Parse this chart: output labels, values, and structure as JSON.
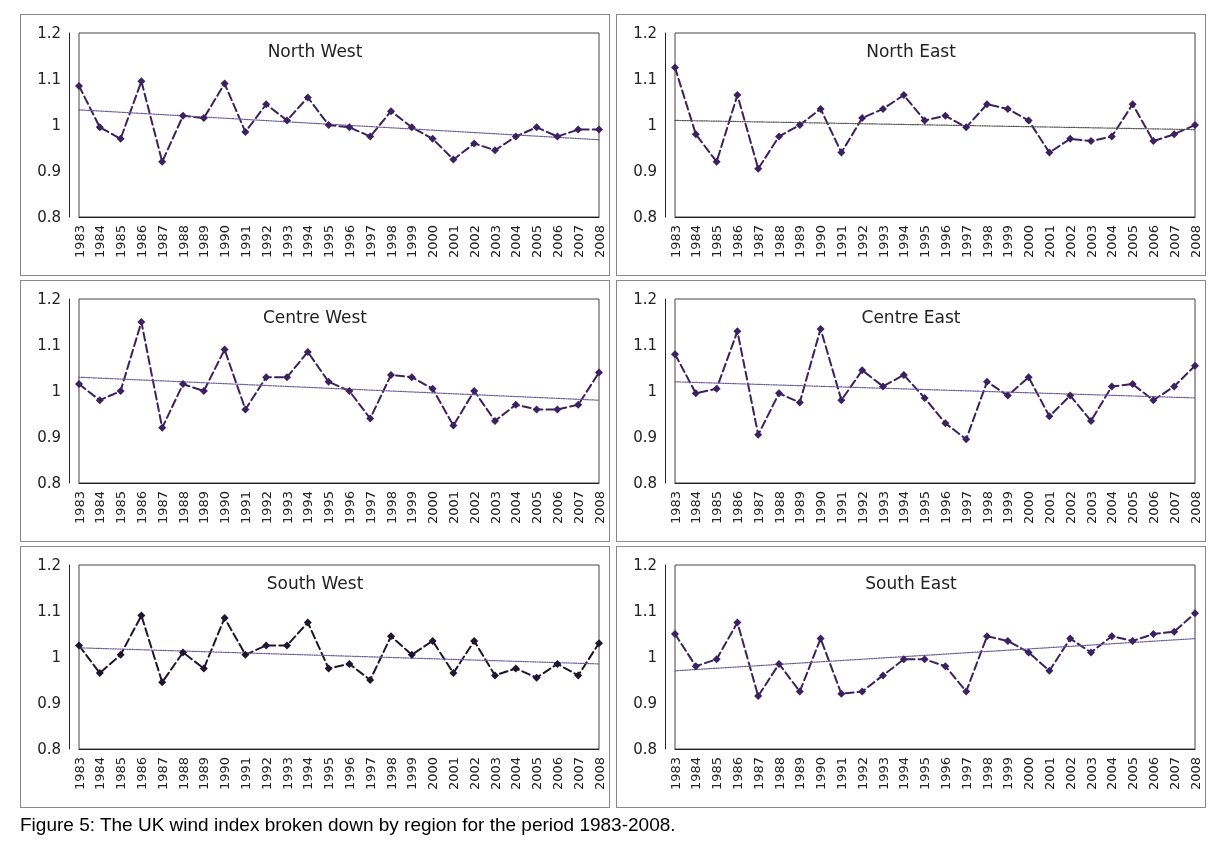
{
  "chart_data": [
    {
      "type": "line",
      "title": "North West",
      "categories": [
        "1983",
        "1984",
        "1985",
        "1986",
        "1987",
        "1988",
        "1989",
        "1990",
        "1991",
        "1992",
        "1993",
        "1994",
        "1995",
        "1996",
        "1997",
        "1998",
        "1999",
        "2000",
        "2001",
        "2002",
        "2003",
        "2004",
        "2005",
        "2006",
        "2007",
        "2008"
      ],
      "ylim": [
        0.8,
        1.2
      ],
      "yticks": [
        0.8,
        0.9,
        1,
        1.1,
        1.2
      ],
      "grid": false,
      "series": [
        {
          "color": "#3b2160",
          "marker": "diamond",
          "line_style": "dashed",
          "values": [
            1.085,
            0.995,
            0.97,
            1.095,
            0.92,
            1.02,
            1.015,
            1.09,
            0.985,
            1.045,
            1.01,
            1.06,
            1.0,
            0.995,
            0.975,
            1.03,
            0.995,
            0.97,
            0.925,
            0.96,
            0.945,
            0.975,
            0.995,
            0.975,
            0.99,
            0.99
          ]
        },
        {
          "type": "line",
          "color": "#6b5b9c",
          "marker": "none",
          "line_style": "dotted",
          "values": [
            1.033,
            null,
            null,
            null,
            null,
            null,
            null,
            null,
            null,
            null,
            null,
            null,
            null,
            null,
            null,
            null,
            null,
            null,
            null,
            null,
            null,
            null,
            null,
            null,
            null,
            0.968
          ]
        }
      ]
    },
    {
      "type": "line",
      "title": "North East",
      "categories": [
        "1983",
        "1984",
        "1985",
        "1986",
        "1987",
        "1988",
        "1989",
        "1990",
        "1991",
        "1992",
        "1993",
        "1994",
        "1995",
        "1996",
        "1997",
        "1998",
        "1999",
        "2000",
        "2001",
        "2002",
        "2003",
        "2004",
        "2005",
        "2006",
        "2007",
        "2008"
      ],
      "ylim": [
        0.8,
        1.2
      ],
      "yticks": [
        0.8,
        0.9,
        1,
        1.1,
        1.2
      ],
      "grid": false,
      "series": [
        {
          "color": "#3b2160",
          "marker": "diamond",
          "line_style": "dashed",
          "values": [
            1.125,
            0.98,
            0.92,
            1.065,
            0.905,
            0.975,
            1.0,
            1.035,
            0.94,
            1.015,
            1.035,
            1.065,
            1.01,
            1.02,
            0.995,
            1.045,
            1.035,
            1.01,
            0.94,
            0.97,
            0.965,
            0.975,
            1.045,
            0.965,
            0.98,
            1.0
          ]
        },
        {
          "type": "line",
          "color": "#555555",
          "marker": "none",
          "line_style": "dotted",
          "values": [
            1.01,
            null,
            null,
            null,
            null,
            null,
            null,
            null,
            null,
            null,
            null,
            null,
            null,
            null,
            null,
            null,
            null,
            null,
            null,
            null,
            null,
            null,
            null,
            null,
            null,
            0.99
          ]
        }
      ]
    },
    {
      "type": "line",
      "title": "Centre West",
      "categories": [
        "1983",
        "1984",
        "1985",
        "1986",
        "1987",
        "1988",
        "1989",
        "1990",
        "1991",
        "1992",
        "1993",
        "1994",
        "1995",
        "1996",
        "1997",
        "1998",
        "1999",
        "2000",
        "2001",
        "2002",
        "2003",
        "2004",
        "2005",
        "2006",
        "2007",
        "2008"
      ],
      "ylim": [
        0.8,
        1.2
      ],
      "yticks": [
        0.8,
        0.9,
        1,
        1.1,
        1.2
      ],
      "grid": false,
      "series": [
        {
          "color": "#3b2160",
          "marker": "diamond",
          "line_style": "dashed",
          "values": [
            1.015,
            0.98,
            1.0,
            1.15,
            0.92,
            1.015,
            1.0,
            1.09,
            0.96,
            1.03,
            1.03,
            1.085,
            1.02,
            1.0,
            0.94,
            1.035,
            1.03,
            1.005,
            0.925,
            1.0,
            0.935,
            0.97,
            0.96,
            0.96,
            0.97,
            1.04
          ]
        },
        {
          "type": "line",
          "color": "#6b5b9c",
          "marker": "none",
          "line_style": "dotted",
          "values": [
            1.03,
            null,
            null,
            null,
            null,
            null,
            null,
            null,
            null,
            null,
            null,
            null,
            null,
            null,
            null,
            null,
            null,
            null,
            null,
            null,
            null,
            null,
            null,
            null,
            null,
            0.98
          ]
        }
      ]
    },
    {
      "type": "line",
      "title": "Centre East",
      "categories": [
        "1983",
        "1984",
        "1985",
        "1986",
        "1987",
        "1988",
        "1989",
        "1990",
        "1991",
        "1992",
        "1993",
        "1994",
        "1995",
        "1996",
        "1997",
        "1998",
        "1999",
        "2000",
        "2001",
        "2002",
        "2003",
        "2004",
        "2005",
        "2006",
        "2007",
        "2008"
      ],
      "ylim": [
        0.8,
        1.2
      ],
      "yticks": [
        0.8,
        0.9,
        1,
        1.1,
        1.2
      ],
      "grid": false,
      "series": [
        {
          "color": "#3b2160",
          "marker": "diamond",
          "line_style": "dashed",
          "values": [
            1.08,
            0.995,
            1.005,
            1.13,
            0.905,
            0.995,
            0.975,
            1.135,
            0.98,
            1.045,
            1.01,
            1.035,
            0.985,
            0.93,
            0.895,
            1.02,
            0.99,
            1.03,
            0.945,
            0.99,
            0.935,
            1.01,
            1.015,
            0.98,
            1.01,
            1.055
          ]
        },
        {
          "type": "line",
          "color": "#6b5b9c",
          "marker": "none",
          "line_style": "dotted",
          "values": [
            1.02,
            null,
            null,
            null,
            null,
            null,
            null,
            null,
            null,
            null,
            null,
            null,
            null,
            null,
            null,
            null,
            null,
            null,
            null,
            null,
            null,
            null,
            null,
            null,
            null,
            0.985
          ]
        }
      ]
    },
    {
      "type": "line",
      "title": "South West",
      "categories": [
        "1983",
        "1984",
        "1985",
        "1986",
        "1987",
        "1988",
        "1989",
        "1990",
        "1991",
        "1992",
        "1993",
        "1994",
        "1995",
        "1996",
        "1997",
        "1998",
        "1999",
        "2000",
        "2001",
        "2002",
        "2003",
        "2004",
        "2005",
        "2006",
        "2007",
        "2008"
      ],
      "ylim": [
        0.8,
        1.2
      ],
      "yticks": [
        0.8,
        0.9,
        1,
        1.1,
        1.2
      ],
      "grid": false,
      "series": [
        {
          "color": "#1f1530",
          "marker": "diamond",
          "line_style": "dashed",
          "values": [
            1.025,
            0.965,
            1.005,
            1.09,
            0.945,
            1.01,
            0.975,
            1.085,
            1.005,
            1.025,
            1.025,
            1.075,
            0.975,
            0.985,
            0.95,
            1.045,
            1.005,
            1.035,
            0.965,
            1.035,
            0.96,
            0.975,
            0.955,
            0.985,
            0.96,
            1.03
          ]
        },
        {
          "type": "line",
          "color": "#6b5b9c",
          "marker": "none",
          "line_style": "dotted",
          "values": [
            1.02,
            null,
            null,
            null,
            null,
            null,
            null,
            null,
            null,
            null,
            null,
            null,
            null,
            null,
            null,
            null,
            null,
            null,
            null,
            null,
            null,
            null,
            null,
            null,
            null,
            0.985
          ]
        }
      ]
    },
    {
      "type": "line",
      "title": "South East",
      "categories": [
        "1983",
        "1984",
        "1985",
        "1986",
        "1987",
        "1988",
        "1989",
        "1990",
        "1991",
        "1992",
        "1993",
        "1994",
        "1995",
        "1996",
        "1997",
        "1998",
        "1999",
        "2000",
        "2001",
        "2002",
        "2003",
        "2004",
        "2005",
        "2006",
        "2007",
        "2008"
      ],
      "ylim": [
        0.8,
        1.2
      ],
      "yticks": [
        0.8,
        0.9,
        1,
        1.1,
        1.2
      ],
      "grid": false,
      "annotations": [
        "Figure 5: The UK wind index broken down by region for the period 1983-2008."
      ],
      "series": [
        {
          "color": "#3b2160",
          "marker": "diamond",
          "line_style": "dashed",
          "values": [
            1.05,
            0.98,
            0.995,
            1.075,
            0.915,
            0.985,
            0.925,
            1.04,
            0.92,
            0.925,
            0.96,
            0.995,
            0.995,
            0.98,
            0.925,
            1.045,
            1.035,
            1.01,
            0.97,
            1.04,
            1.01,
            1.045,
            1.035,
            1.05,
            1.055,
            1.095
          ]
        },
        {
          "type": "line",
          "color": "#6b5b9c",
          "marker": "none",
          "line_style": "dotted",
          "values": [
            0.97,
            null,
            null,
            null,
            null,
            null,
            null,
            null,
            null,
            null,
            null,
            null,
            null,
            null,
            null,
            null,
            null,
            null,
            null,
            null,
            null,
            null,
            null,
            null,
            null,
            1.04
          ]
        }
      ]
    }
  ]
}
